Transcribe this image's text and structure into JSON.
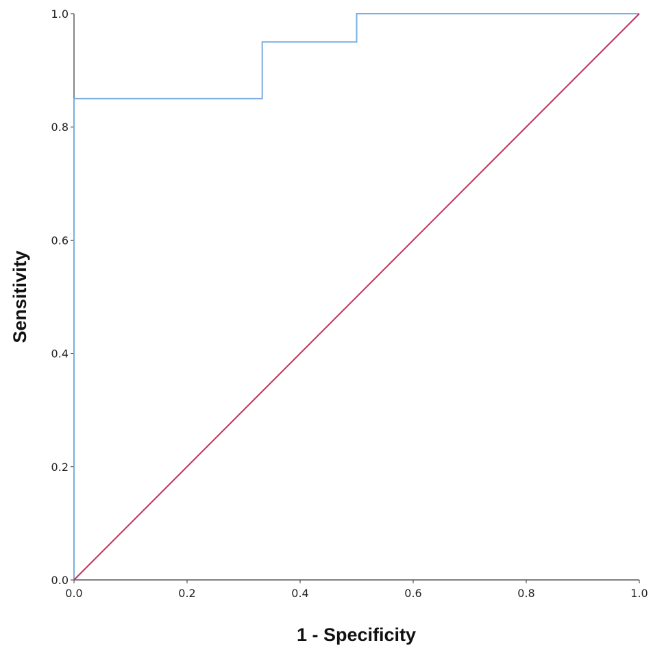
{
  "chart_data": {
    "type": "line",
    "xlabel": "1 - Specificity",
    "ylabel": "Sensitivity",
    "xlim": [
      0,
      1
    ],
    "ylim": [
      0,
      1
    ],
    "x_ticks": [
      "0.0",
      "0.2",
      "0.4",
      "0.6",
      "0.8",
      "1.0"
    ],
    "y_ticks": [
      "0.0",
      "0.2",
      "0.4",
      "0.6",
      "0.8",
      "1.0"
    ],
    "grid": false,
    "series": [
      {
        "color": "#7aaee0",
        "points": [
          [
            0,
            0
          ],
          [
            0,
            0.85
          ],
          [
            0.333,
            0.85
          ],
          [
            0.333,
            0.95
          ],
          [
            0.5,
            0.95
          ],
          [
            0.5,
            1.0
          ],
          [
            1.0,
            1.0
          ]
        ]
      },
      {
        "color": "#c0305a",
        "points": [
          [
            0,
            0
          ],
          [
            1.0,
            1.0
          ]
        ]
      }
    ],
    "axis_color": "#333333"
  }
}
